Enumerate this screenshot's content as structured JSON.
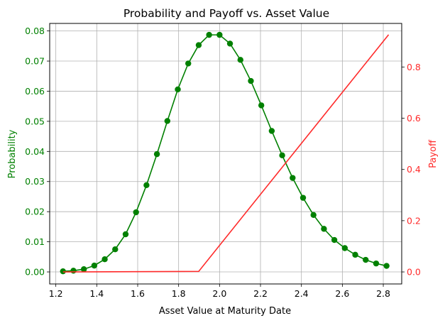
{
  "chart_data": {
    "type": "line",
    "title": "Probability and Payoff vs. Asset Value",
    "xlabel": "Asset Value at Maturity Date",
    "ylabel_left": "Probability",
    "ylabel_right": "Payoff",
    "xlim": [
      1.17,
      2.89
    ],
    "ylim_left": [
      -0.004,
      0.0825
    ],
    "ylim_right": [
      -0.047,
      0.97
    ],
    "xticks": [
      "1.2",
      "1.4",
      "1.6",
      "1.8",
      "2.0",
      "2.2",
      "2.4",
      "2.6",
      "2.8"
    ],
    "yticks_left": [
      "0.00",
      "0.01",
      "0.02",
      "0.03",
      "0.04",
      "0.05",
      "0.06",
      "0.07",
      "0.08"
    ],
    "yticks_right": [
      "0.0",
      "0.2",
      "0.4",
      "0.6",
      "0.8"
    ],
    "grid": true,
    "colors": {
      "probability": "#008000",
      "payoff": "#ff2a2a"
    },
    "series": [
      {
        "name": "Probability",
        "axis": "left",
        "marker": "circle",
        "x": [
          1.235,
          1.286,
          1.337,
          1.388,
          1.439,
          1.49,
          1.541,
          1.592,
          1.643,
          1.694,
          1.745,
          1.796,
          1.847,
          1.898,
          1.949,
          2.0,
          2.051,
          2.102,
          2.153,
          2.204,
          2.255,
          2.306,
          2.357,
          2.408,
          2.459,
          2.51,
          2.561,
          2.612,
          2.663,
          2.714,
          2.765,
          2.816
        ],
        "values": [
          0.0002,
          0.0004,
          0.0009,
          0.0021,
          0.0042,
          0.0075,
          0.0125,
          0.0198,
          0.0288,
          0.0391,
          0.0501,
          0.0606,
          0.0692,
          0.0753,
          0.0787,
          0.0787,
          0.0758,
          0.0704,
          0.0634,
          0.0553,
          0.0468,
          0.0387,
          0.0312,
          0.0246,
          0.0189,
          0.0143,
          0.0106,
          0.0079,
          0.0057,
          0.004,
          0.0028,
          0.002
        ]
      },
      {
        "name": "Payoff",
        "axis": "right",
        "marker": "none",
        "x": [
          1.235,
          1.898,
          2.826
        ],
        "values": [
          0.0,
          0.002,
          0.926
        ]
      }
    ]
  }
}
